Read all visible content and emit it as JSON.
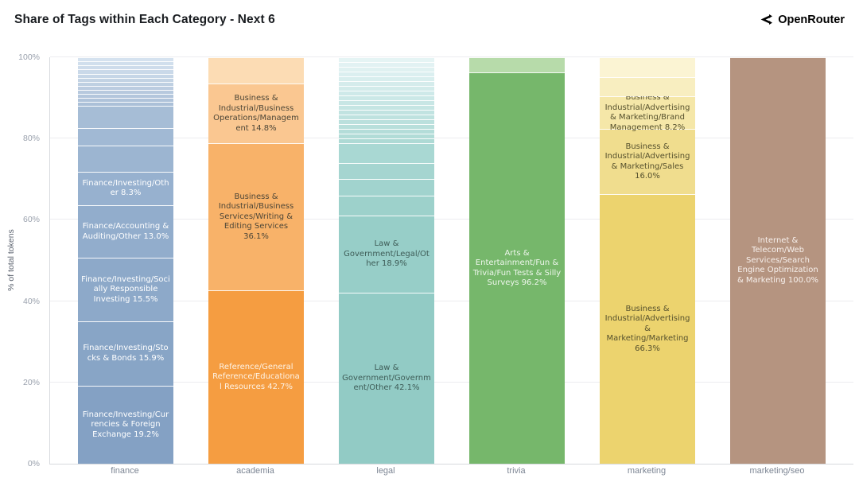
{
  "header": {
    "title": "Share of Tags within Each Category - Next 6",
    "brand": "OpenRouter"
  },
  "chart_data": {
    "type": "bar",
    "stacked": true,
    "title": "Share of Tags within Each Category - Next 6",
    "ylabel": "% of total tokens",
    "ylim": [
      0,
      100
    ],
    "grid": true,
    "legend_position": "none",
    "yticks": [
      {
        "value": 0,
        "label": "0%"
      },
      {
        "value": 20,
        "label": "20%"
      },
      {
        "value": 40,
        "label": "40%"
      },
      {
        "value": 60,
        "label": "60%"
      },
      {
        "value": 80,
        "label": "80%"
      },
      {
        "value": 100,
        "label": "100%"
      }
    ],
    "categories": [
      "finance",
      "academia",
      "legal",
      "trivia",
      "marketing",
      "marketing/seo"
    ],
    "bars": [
      {
        "category": "finance",
        "segments": [
          {
            "label": "Finance/Investing/Currencies & Foreign Exchange 19.2%",
            "pct": 19.2,
            "color": "#84a1c4",
            "label_color": "#ffffff"
          },
          {
            "label": "Finance/Investing/Stocks & Bonds 15.9%",
            "pct": 15.9,
            "color": "#88a5c6",
            "label_color": "#ffffff"
          },
          {
            "label": "Finance/Investing/Socially Responsible Investing 15.5%",
            "pct": 15.5,
            "color": "#8da9c9",
            "label_color": "#ffffff"
          },
          {
            "label": "Finance/Accounting & Auditing/Other 13.0%",
            "pct": 13.0,
            "color": "#92adcc",
            "label_color": "#ffffff"
          },
          {
            "label": "Finance/Investing/Other 8.3%",
            "pct": 8.3,
            "color": "#97b1cf",
            "label_color": "#ffffff"
          },
          {
            "label": "",
            "pct": 6.3,
            "color": "#9cb5d1"
          },
          {
            "label": "",
            "pct": 4.3,
            "color": "#a1b9d4"
          },
          {
            "label": "",
            "pct": 5.5,
            "color": "#a6bdd6"
          },
          {
            "label": "",
            "pct": 1.0,
            "color": "#abc0d8"
          },
          {
            "label": "",
            "pct": 1.0,
            "color": "#afc3da"
          },
          {
            "label": "",
            "pct": 1.0,
            "color": "#b3c6dc"
          },
          {
            "label": "",
            "pct": 1.0,
            "color": "#b7c9de"
          },
          {
            "label": "",
            "pct": 1.0,
            "color": "#bbcce0"
          },
          {
            "label": "",
            "pct": 1.0,
            "color": "#bfd0e2"
          },
          {
            "label": "",
            "pct": 1.0,
            "color": "#c3d3e4"
          },
          {
            "label": "",
            "pct": 1.0,
            "color": "#c6d6e7"
          },
          {
            "label": "",
            "pct": 1.0,
            "color": "#cad9e9"
          },
          {
            "label": "",
            "pct": 1.0,
            "color": "#cedceb"
          },
          {
            "label": "",
            "pct": 1.0,
            "color": "#d1dfed"
          },
          {
            "label": "",
            "pct": 1.0,
            "color": "#d5e2ef"
          }
        ]
      },
      {
        "category": "academia",
        "segments": [
          {
            "label": "Reference/General Reference/Educational Resources 42.7%",
            "pct": 42.7,
            "color": "#f59d41",
            "label_color": "#fdf3e6"
          },
          {
            "label": "Business & Industrial/Business Services/Writing & Editing Services 36.1%",
            "pct": 36.1,
            "color": "#f8b269",
            "label_color": "#4d4637"
          },
          {
            "label": "Business & Industrial/Business Operations/Management 14.8%",
            "pct": 14.8,
            "color": "#fac791",
            "label_color": "#4d4637"
          },
          {
            "label": "",
            "pct": 6.4,
            "color": "#fcdcb4"
          }
        ]
      },
      {
        "category": "legal",
        "segments": [
          {
            "label": "Law & Government/Government/Other 42.1%",
            "pct": 42.1,
            "color": "#92cbc5",
            "label_color": "#3e5c57"
          },
          {
            "label": "Law & Government/Legal/Other 18.9%",
            "pct": 18.9,
            "color": "#97cec8",
            "label_color": "#3e5c57"
          },
          {
            "label": "",
            "pct": 4.9,
            "color": "#9dd1cb"
          },
          {
            "label": "",
            "pct": 4.3,
            "color": "#a1d3ce"
          },
          {
            "label": "",
            "pct": 3.9,
            "color": "#a5d5d0"
          },
          {
            "label": "",
            "pct": 4.9,
            "color": "#a9d8d3"
          },
          {
            "label": "",
            "pct": 1.17,
            "color": "#aedad5"
          },
          {
            "label": "",
            "pct": 1.17,
            "color": "#b1dcd7"
          },
          {
            "label": "",
            "pct": 1.17,
            "color": "#b4ddd9"
          },
          {
            "label": "",
            "pct": 1.17,
            "color": "#b8dfdb"
          },
          {
            "label": "",
            "pct": 1.17,
            "color": "#bbe0dd"
          },
          {
            "label": "",
            "pct": 1.17,
            "color": "#bee2df"
          },
          {
            "label": "",
            "pct": 1.17,
            "color": "#c1e3e1"
          },
          {
            "label": "",
            "pct": 1.17,
            "color": "#c5e5e3"
          },
          {
            "label": "",
            "pct": 1.17,
            "color": "#c8e6e5"
          },
          {
            "label": "",
            "pct": 1.17,
            "color": "#cbe8e7"
          },
          {
            "label": "",
            "pct": 1.17,
            "color": "#cee9e9"
          },
          {
            "label": "",
            "pct": 1.17,
            "color": "#d2ebea"
          },
          {
            "label": "",
            "pct": 1.17,
            "color": "#d5ecec"
          },
          {
            "label": "",
            "pct": 1.17,
            "color": "#d8eeee"
          },
          {
            "label": "",
            "pct": 1.17,
            "color": "#dbeff0"
          },
          {
            "label": "",
            "pct": 1.17,
            "color": "#dff1f1"
          },
          {
            "label": "",
            "pct": 1.17,
            "color": "#e2f2f3"
          },
          {
            "label": "",
            "pct": 1.17,
            "color": "#e5f4f4"
          }
        ]
      },
      {
        "category": "trivia",
        "segments": [
          {
            "label": "Arts & Entertainment/Fun & Trivia/Fun Tests & Silly Surveys 96.2%",
            "pct": 96.2,
            "color": "#76b76b",
            "label_color": "#eef6ec"
          },
          {
            "label": "",
            "pct": 3.8,
            "color": "#b7dbaa"
          }
        ]
      },
      {
        "category": "marketing",
        "segments": [
          {
            "label": "Business & Industrial/Advertising & Marketing/Marketing 66.3%",
            "pct": 66.3,
            "color": "#ecd36e",
            "label_color": "#55502d"
          },
          {
            "label": "Business & Industrial/Advertising & Marketing/Sales 16.0%",
            "pct": 16.0,
            "color": "#f0dd8e",
            "label_color": "#55502d"
          },
          {
            "label": "Business & Industrial/Advertising & Marketing/Brand Management 8.2%",
            "pct": 8.2,
            "color": "#f5e7a8",
            "label_color": "#55502d"
          },
          {
            "label": "",
            "pct": 4.6,
            "color": "#f8eec0"
          },
          {
            "label": "",
            "pct": 4.9,
            "color": "#fbf4d3"
          }
        ]
      },
      {
        "category": "marketing/seo",
        "segments": [
          {
            "label": "Internet & Telecom/Web Services/Search Engine Optimization & Marketing 100.0%",
            "pct": 100.0,
            "color": "#b59480",
            "label_color": "#f7f0ec"
          }
        ]
      }
    ]
  }
}
